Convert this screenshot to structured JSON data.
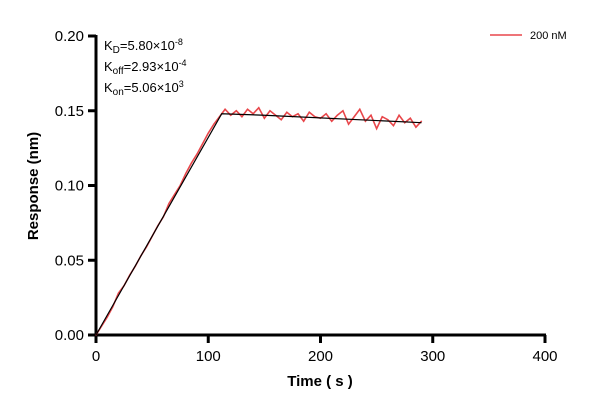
{
  "chart_data": {
    "type": "line",
    "xlabel": "Time ( s )",
    "ylabel": "Response (nm)",
    "xlim": [
      0,
      400
    ],
    "ylim": [
      0,
      0.2
    ],
    "xticks": [
      "0",
      "100",
      "200",
      "300",
      "400"
    ],
    "yticks": [
      "0.00",
      "0.05",
      "0.10",
      "0.15",
      "0.20"
    ],
    "grid": false,
    "legend_position": "top-right",
    "annotations": [
      {
        "base": "K",
        "sub": "D",
        "value": "=5.80×10",
        "exp": "-8"
      },
      {
        "base": "K",
        "sub": "off",
        "value": "=2.93×10",
        "exp": "-4"
      },
      {
        "base": "K",
        "sub": "on",
        "value": "=5.06×10",
        "exp": "3"
      }
    ],
    "series": [
      {
        "name": "200 nM",
        "color": "#e8474b",
        "x": [
          0,
          5,
          10,
          15,
          20,
          25,
          30,
          35,
          40,
          45,
          50,
          55,
          60,
          65,
          70,
          75,
          80,
          85,
          90,
          95,
          100,
          105,
          110,
          115,
          120,
          125,
          130,
          135,
          140,
          145,
          150,
          155,
          160,
          165,
          170,
          175,
          180,
          185,
          190,
          195,
          200,
          205,
          210,
          215,
          220,
          225,
          230,
          235,
          240,
          245,
          250,
          255,
          260,
          265,
          270,
          275,
          280,
          285,
          290
        ],
        "y": [
          0.0,
          0.006,
          0.012,
          0.019,
          0.028,
          0.033,
          0.04,
          0.046,
          0.053,
          0.059,
          0.066,
          0.073,
          0.079,
          0.088,
          0.094,
          0.1,
          0.108,
          0.115,
          0.121,
          0.128,
          0.135,
          0.141,
          0.146,
          0.151,
          0.147,
          0.15,
          0.146,
          0.151,
          0.148,
          0.152,
          0.145,
          0.15,
          0.147,
          0.144,
          0.149,
          0.146,
          0.148,
          0.143,
          0.149,
          0.146,
          0.145,
          0.148,
          0.143,
          0.147,
          0.15,
          0.141,
          0.146,
          0.151,
          0.143,
          0.147,
          0.138,
          0.146,
          0.144,
          0.14,
          0.147,
          0.142,
          0.145,
          0.139,
          0.143
        ]
      }
    ],
    "fit": {
      "color": "#000000",
      "x": [
        0,
        112,
        150,
        290
      ],
      "y": [
        0,
        0.148,
        0.147,
        0.142
      ]
    }
  }
}
